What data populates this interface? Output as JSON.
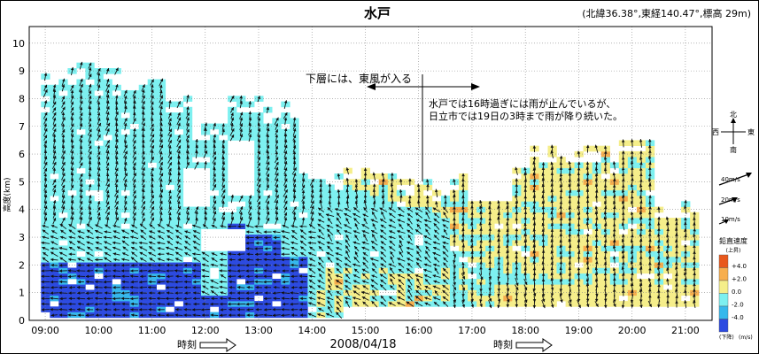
{
  "chart_data": {
    "type": "wind-profiler",
    "title": "水戸",
    "station_info": "(北緯36.38°,東経140.47°,標高 29m)",
    "date": "2008/04/18",
    "x_axis": {
      "label": "時刻",
      "ticks": [
        "09:00",
        "10:00",
        "11:00",
        "12:00",
        "13:00",
        "14:00",
        "15:00",
        "16:00",
        "17:00",
        "18:00",
        "19:00",
        "20:00",
        "21:00"
      ],
      "range_hours": [
        8.7,
        21.5
      ]
    },
    "y_axis": {
      "label": "高度(km)",
      "ticks": [
        "0",
        "1",
        "2",
        "3",
        "4",
        "5",
        "6",
        "7",
        "8",
        "9",
        "10"
      ],
      "range_km": [
        0,
        10.6
      ]
    },
    "grid": true,
    "annotations": {
      "lower_layer": "下層には、東風が入る",
      "rain_line1": "水戸では16時過ぎには雨が止んでいるが、",
      "rain_line2": "日立市では19日の3時まで雨が降り続いた。"
    },
    "compass": {
      "north": "北",
      "south": "南",
      "west": "西",
      "east": "東"
    },
    "wind_scale": [
      "40m/s",
      "20m/s",
      "10m/s"
    ],
    "vertical_velocity_legend": {
      "title": "鉛直速度",
      "up_label": "(上昇)",
      "down_label": "(下降)",
      "unit": "(m/s)",
      "levels": [
        {
          "label": "+4.0",
          "color": "#e8581c"
        },
        {
          "label": "+2.0",
          "color": "#f7ae4e"
        },
        {
          "label": "0.0",
          "color": "#f5ee8a"
        },
        {
          "label": "-2.0",
          "color": "#7df0f0"
        },
        {
          "label": "-4.0",
          "color": "#36b8ec"
        },
        {
          "label": "",
          "color": "#2c4ae0"
        }
      ]
    },
    "colors": {
      "yellow": "#f5ee8a",
      "cyan": "#7df0f0",
      "blue": "#2c4ae0",
      "mid_blue": "#36b8ec",
      "orange": "#f7ae4e"
    }
  }
}
